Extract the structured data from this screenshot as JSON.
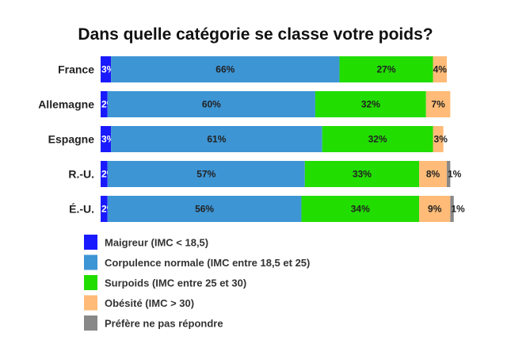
{
  "chart_data": {
    "type": "bar",
    "orientation": "horizontal",
    "stacked": true,
    "title": "Dans quelle catégorie se classe votre poids?",
    "categories": [
      "France",
      "Allemagne",
      "Espagne",
      "R.-U.",
      "É.-U."
    ],
    "series": [
      {
        "name": "Maigreur (IMC < 18,5)",
        "color": "#1a1aff",
        "values": [
          3,
          2,
          3,
          2,
          2
        ],
        "labels": [
          "3%",
          "2%",
          "3%",
          "2%",
          "2%"
        ]
      },
      {
        "name": "Corpulence normale (IMC entre 18,5 et 25)",
        "color": "#3d95d4",
        "values": [
          66,
          60,
          61,
          57,
          56
        ],
        "labels": [
          "66%",
          "60%",
          "61%",
          "57%",
          "56%"
        ]
      },
      {
        "name": "Surpoids (IMC entre 25 et 30)",
        "color": "#22dd00",
        "values": [
          27,
          32,
          32,
          33,
          34
        ],
        "labels": [
          "27%",
          "32%",
          "32%",
          "33%",
          "34%"
        ]
      },
      {
        "name": "Obésité (IMC > 30)",
        "color": "#ffbb77",
        "values": [
          4,
          7,
          3,
          8,
          9
        ],
        "labels": [
          "4%",
          "7%",
          "3%",
          "8%",
          "9%"
        ]
      },
      {
        "name": "Préfère ne pas répondre",
        "color": "#888888",
        "values": [
          0,
          0,
          0,
          1,
          1
        ],
        "labels": [
          "",
          "",
          "",
          "1%",
          "1%"
        ]
      }
    ],
    "legend_position": "bottom",
    "grid": false
  }
}
